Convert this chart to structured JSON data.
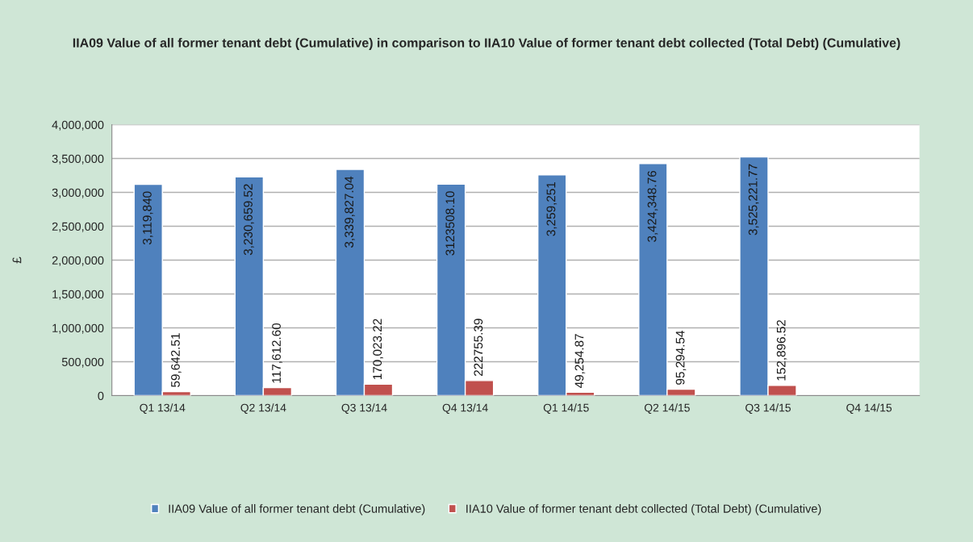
{
  "chart_data": {
    "type": "bar",
    "title": "IIA09 Value of all former tenant debt (Cumulative) in comparison to IIA10 Value of former tenant debt collected (Total Debt) (Cumulative)",
    "ylabel": "£",
    "categories": [
      "Q1 13/14",
      "Q2 13/14",
      "Q3 13/14",
      "Q4 13/14",
      "Q1 14/15",
      "Q2 14/15",
      "Q3 14/15",
      "Q4 14/15"
    ],
    "series": [
      {
        "name": "IIA09 Value of all former tenant debt (Cumulative)",
        "color": "#4f81bd",
        "values": [
          3119840,
          3230659.52,
          3339827.04,
          3123508.1,
          3259251,
          3424348.76,
          3525221.77,
          null
        ],
        "value_labels": [
          "3,119,840",
          "3,230,659.52",
          "3,339,827.04",
          "3123508.10",
          "3,259,251",
          "3,424,348.76",
          "3,525,221.77",
          null
        ]
      },
      {
        "name": "IIA10 Value of former tenant debt collected (Total Debt) (Cumulative)",
        "color": "#c0504d",
        "values": [
          59642.51,
          117612.6,
          170023.22,
          222755.39,
          49254.87,
          95294.54,
          152896.52,
          null
        ],
        "value_labels": [
          "59,642.51",
          "117,612.60",
          "170,023.22",
          "222755.39",
          "49,254.87",
          "95,294.54",
          "152,896.52",
          null
        ]
      }
    ],
    "ylim": [
      0,
      4000000
    ],
    "yticks": [
      {
        "value": 0,
        "label": "0"
      },
      {
        "value": 500000,
        "label": "500,000"
      },
      {
        "value": 1000000,
        "label": "1,000,000"
      },
      {
        "value": 1500000,
        "label": "1,500,000"
      },
      {
        "value": 2000000,
        "label": "2,000,000"
      },
      {
        "value": 2500000,
        "label": "2,500,000"
      },
      {
        "value": 3000000,
        "label": "3,000,000"
      },
      {
        "value": 3500000,
        "label": "3,500,000"
      },
      {
        "value": 4000000,
        "label": "4,000,000"
      }
    ],
    "grid": "y",
    "legend": "bottom"
  }
}
